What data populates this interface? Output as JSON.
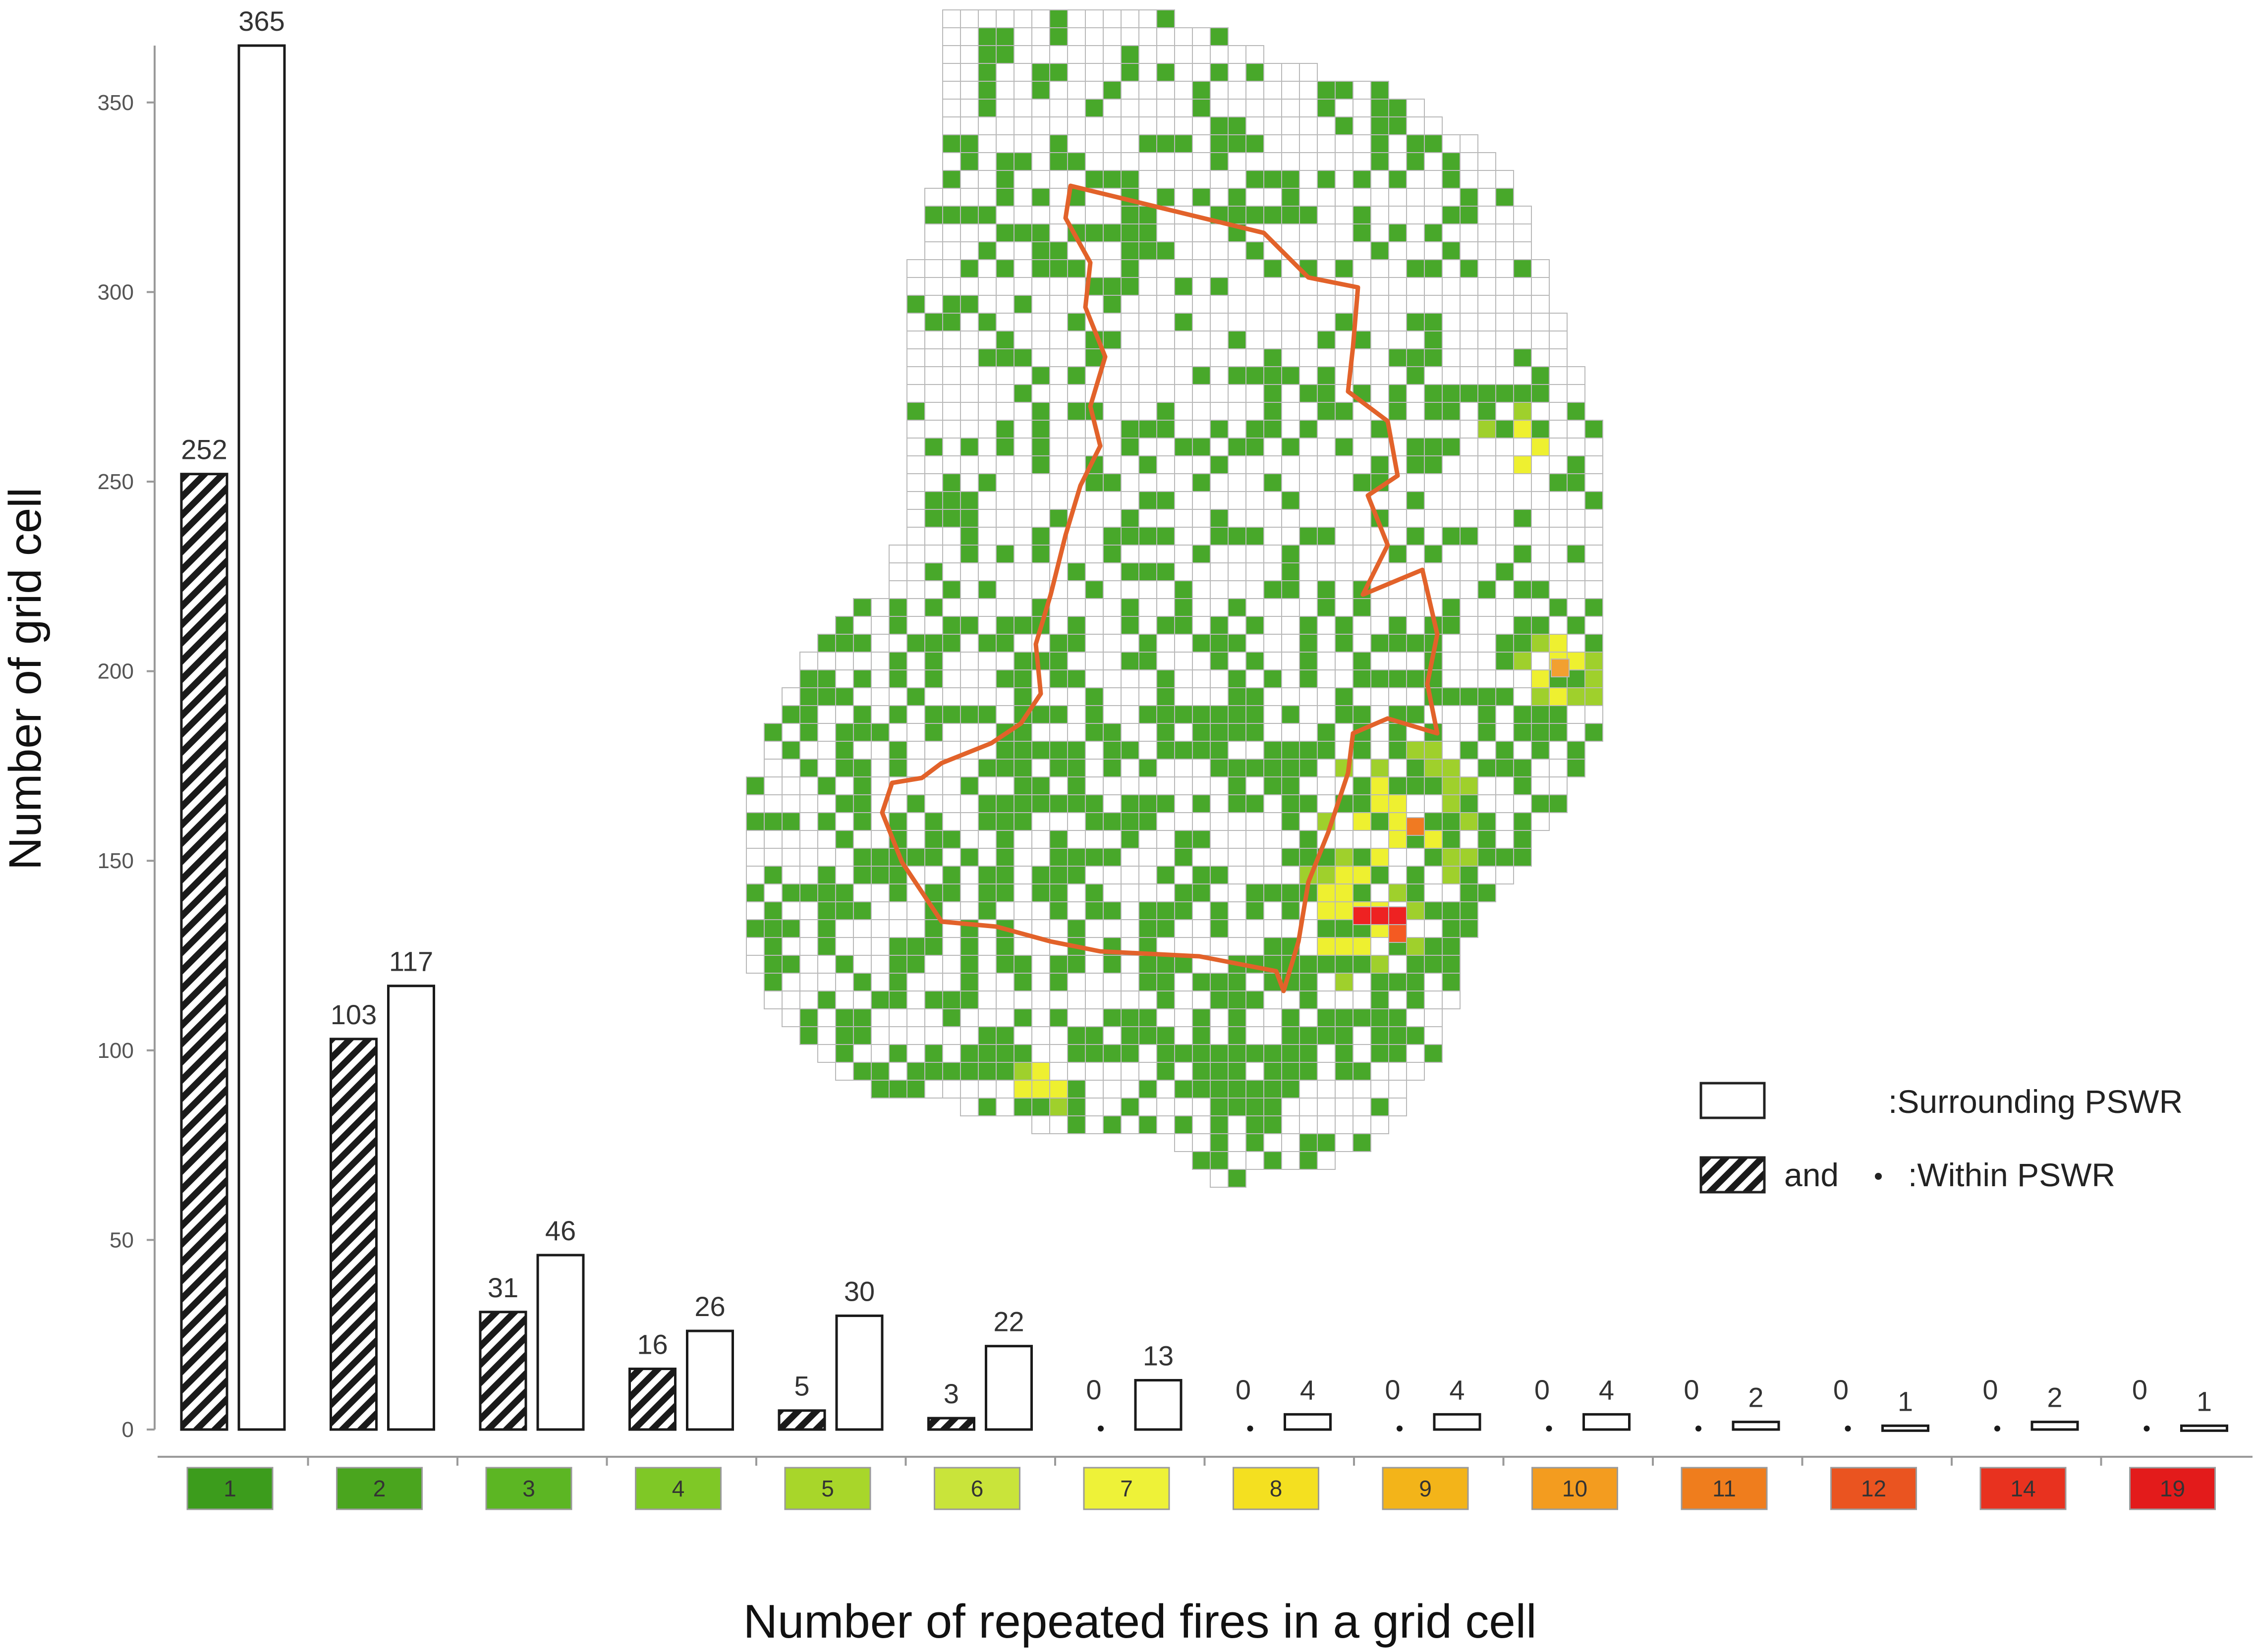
{
  "chart_data": {
    "type": "bar",
    "xlabel": "Number of repeated fires in a grid cell",
    "ylabel": "Number of grid cell",
    "ylim": [
      0,
      365
    ],
    "yticks": [
      0,
      50,
      100,
      150,
      200,
      250,
      300,
      350
    ],
    "categories": [
      "1",
      "2",
      "3",
      "4",
      "5",
      "6",
      "7",
      "8",
      "9",
      "10",
      "11",
      "12",
      "14",
      "19"
    ],
    "category_colors": [
      "#3c9c1c",
      "#4aa51e",
      "#5cb623",
      "#7fc826",
      "#a8d62a",
      "#c9e43a",
      "#eef238",
      "#f4e020",
      "#f3b419",
      "#f39c1f",
      "#ef7d1d",
      "#ea5420",
      "#e8321f",
      "#e31b1b"
    ],
    "series": [
      {
        "name": "Within PSWR",
        "values": [
          252,
          103,
          31,
          16,
          5,
          3,
          0,
          0,
          0,
          0,
          0,
          0,
          0,
          0
        ]
      },
      {
        "name": "Surrounding PSWR",
        "values": [
          365,
          117,
          46,
          26,
          30,
          22,
          13,
          4,
          4,
          4,
          2,
          1,
          2,
          1
        ]
      }
    ],
    "legend": {
      "placement": "inside-right",
      "surrounding_label": ":Surrounding PSWR",
      "and_label": "and",
      "within_label": ":Within PSWR"
    },
    "map_colors": {
      "fire_low": "#48a82a",
      "fire_mid": "#9fd02c",
      "fire_high": "#eef030",
      "fire_max": "#ee2222",
      "boundary": "#e2622a",
      "grid": "#b9b9b9"
    }
  }
}
